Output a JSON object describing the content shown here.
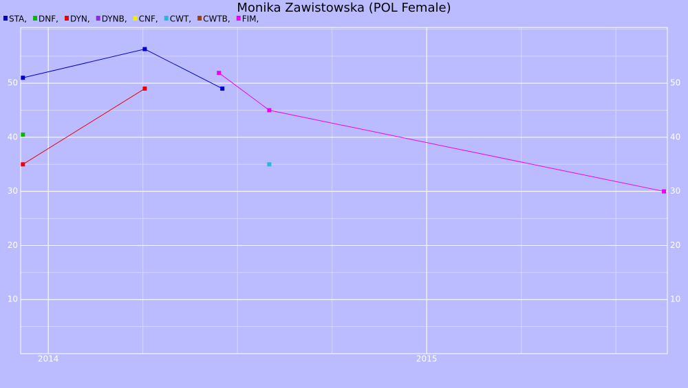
{
  "chart_data": {
    "type": "line",
    "title": "Monika Zawistowska (POL Female)",
    "xlim": [
      2013.927,
      2015.636
    ],
    "xticks": [
      2014,
      2015
    ],
    "ylim": [
      0,
      60.3
    ],
    "yticks": [
      10,
      20,
      30,
      40,
      50
    ],
    "grid": true,
    "series": [
      {
        "name": "STA,",
        "color": "#0000cc",
        "x": [
          2013.933,
          2014.255,
          2014.46
        ],
        "values": [
          51.0,
          56.3,
          49.0
        ]
      },
      {
        "name": "DNF,",
        "color": "#00bb00",
        "x": [
          2013.933
        ],
        "values": [
          40.5
        ]
      },
      {
        "name": "DYN,",
        "color": "#ee0000",
        "x": [
          2013.933,
          2014.255
        ],
        "values": [
          35.0,
          49.0
        ]
      },
      {
        "name": "DYNB,",
        "color": "#8a2be2",
        "x": [],
        "values": []
      },
      {
        "name": "CNF,",
        "color": "#eeee00",
        "x": [],
        "values": []
      },
      {
        "name": "CWT,",
        "color": "#22bbdd",
        "x": [
          2014.584
        ],
        "values": [
          35.0
        ]
      },
      {
        "name": "CWTB,",
        "color": "#a0400a",
        "x": [],
        "values": []
      },
      {
        "name": "FIM,",
        "color": "#ee00ee",
        "x": [
          2014.451,
          2014.584,
          2015.627
        ],
        "values": [
          51.9,
          45.0,
          30.0
        ]
      }
    ]
  }
}
